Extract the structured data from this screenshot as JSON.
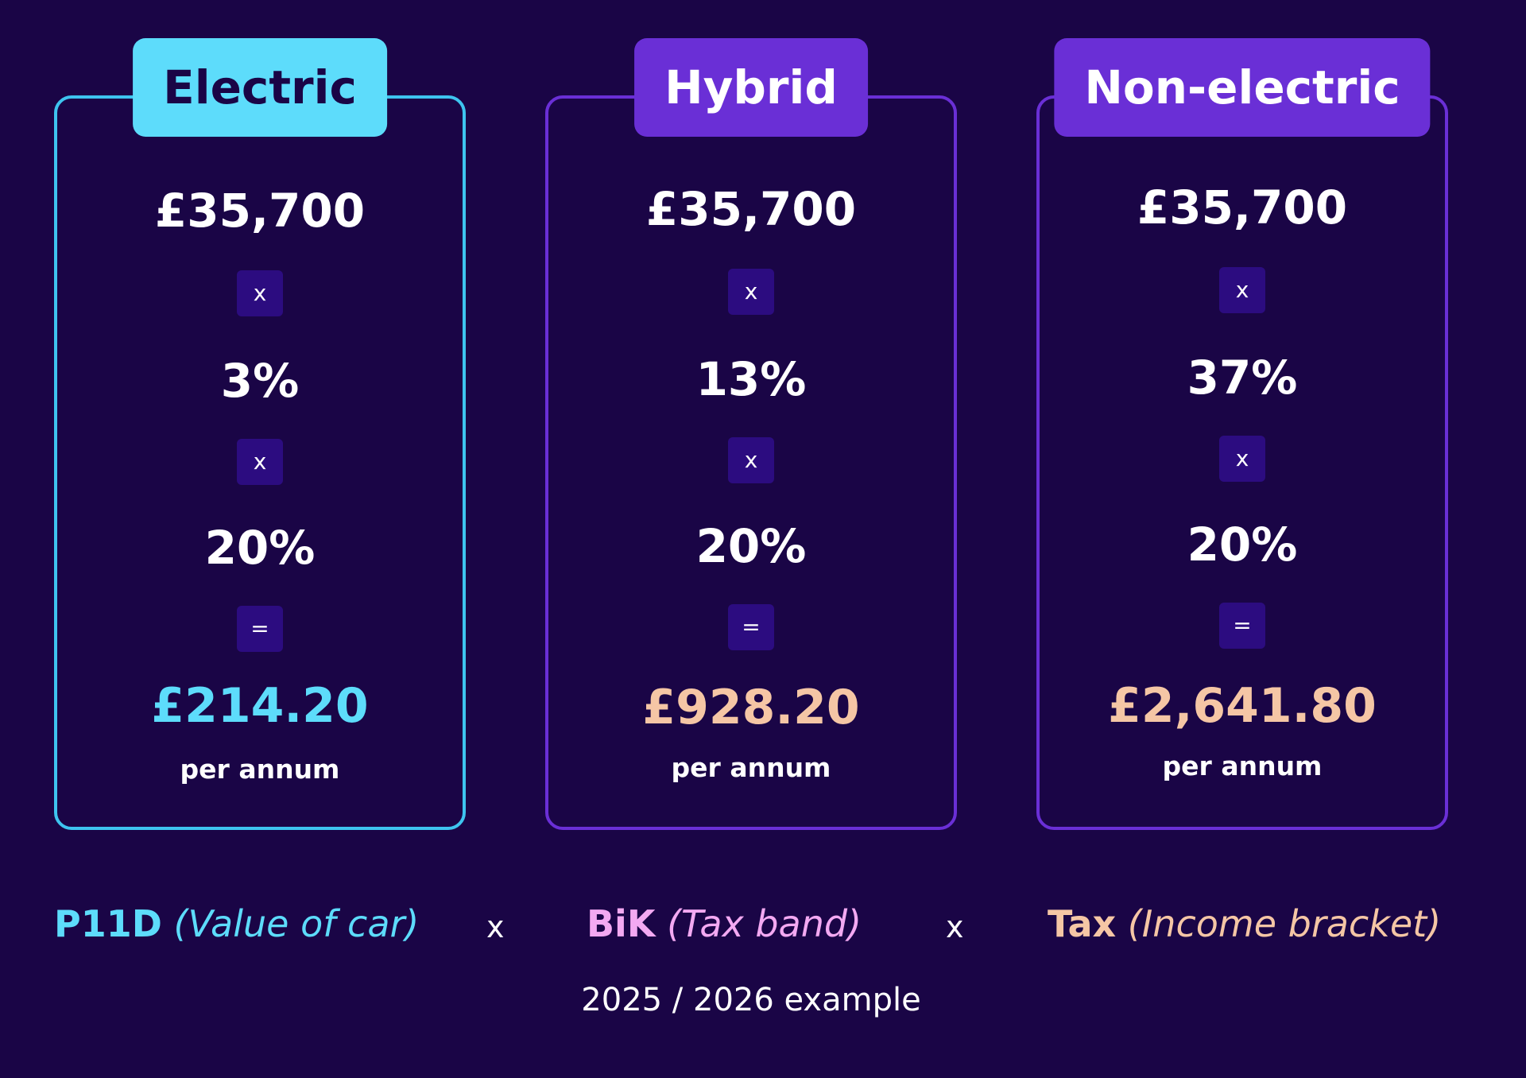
{
  "colors": {
    "background": "#1a0546",
    "electric_accent": "#5ddcfb",
    "purple_accent": "#6a2fd6",
    "operator_box": "#2c0c80",
    "result_peach": "#f5c6a5",
    "bik_pink": "#f3a9f2"
  },
  "cards": [
    {
      "label": "Electric",
      "value": "£35,700",
      "op1": "x",
      "rate": "3%",
      "op2": "x",
      "tax": "20%",
      "op3": "=",
      "result": "£214.20",
      "per": "per annum"
    },
    {
      "label": "Hybrid",
      "value": "£35,700",
      "op1": "x",
      "rate": "13%",
      "op2": "x",
      "tax": "20%",
      "op3": "=",
      "result": "£928.20",
      "per": "per annum"
    },
    {
      "label": "Non-electric",
      "value": "£35,700",
      "op1": "x",
      "rate": "37%",
      "op2": "x",
      "tax": "20%",
      "op3": "=",
      "result": "£2,641.80",
      "per": "per annum"
    }
  ],
  "legend": {
    "p11d_bold": "P11D",
    "p11d_note": "(Value of car)",
    "times1": "x",
    "bik_bold": "BiK",
    "bik_note": "(Tax band)",
    "times2": "x",
    "tax_bold": "Tax",
    "tax_note": "(Income bracket)"
  },
  "footnote": "2025 / 2026 example"
}
